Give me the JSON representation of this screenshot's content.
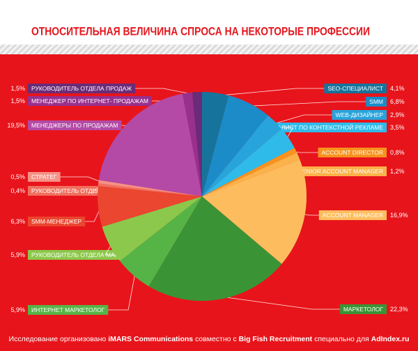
{
  "chart_data": {
    "type": "pie",
    "title": "ОТНОСИТЕЛЬНАЯ ВЕЛИЧИНА СПРОСА НА НЕКОТОРЫЕ ПРОФЕССИИ",
    "categories": [
      "SEO-СПЕЦИАЛИСТ",
      "SMM",
      "WEB-ДИЗАЙНЕР",
      "СПЕЦИАЛИСТ ПО КОНТЕКСТНОЙ РЕКЛАМЕ",
      "ACCOUNT DIRECTOR",
      "SENIOR ACCOUNT MANAGER",
      "ACCOUNT MANAGER",
      "МАРКЕТОЛОГ",
      "ИНТЕРНЕТ МАРКЕТОЛОГ",
      "РУКОВОДИТЕЛЬ ОТДЕЛА МАРКЕТИНГА",
      "SMM-МЕНЕДЖЕР",
      "РУКОВОДИТЕЛЬ ОТДЕЛА SMM",
      "СТРАТЕГ",
      "МЕНЕДЖЕРЫ ПО ПРОДАЖАМ",
      "МЕНЕДЖЕР ПО ИНТЕРНЕТ- ПРОДАЖАМ",
      "РУКОВОДИТЕЛЬ ОТДЕЛА ПРОДАЖ"
    ],
    "values": [
      4.1,
      6.8,
      2.9,
      3.5,
      0.8,
      1.2,
      16.9,
      22.3,
      5.9,
      5.9,
      6.3,
      0.4,
      0.5,
      19.5,
      1.5,
      1.5
    ],
    "value_labels": [
      "4,1%",
      "6,8%",
      "2,9%",
      "3,5%",
      "0,8%",
      "1,2%",
      "16,9%",
      "22,3%",
      "5,9%",
      "5,9%",
      "6,3%",
      "0,4%",
      "0,5%",
      "19,5%",
      "1,5%",
      "1,5%"
    ],
    "colors": [
      "#16749c",
      "#1b8cc8",
      "#28a4dc",
      "#2fbbea",
      "#f7931e",
      "#fbb24a",
      "#fdbd5e",
      "#3a9435",
      "#56b447",
      "#8cc84b",
      "#ea4630",
      "#f0705f",
      "#f59286",
      "#b44aa6",
      "#98308e",
      "#6a2b78"
    ],
    "footer": [
      "Исследование организовано ",
      "iMARS Communications",
      " совместно с ",
      "Big Fish Recruitment",
      " специально для ",
      "AdIndex.ru"
    ]
  }
}
